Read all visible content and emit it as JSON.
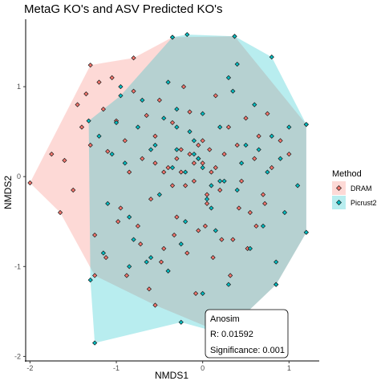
{
  "chart_data": {
    "type": "scatter",
    "title": "MetaG KO's and ASV Predicted KO's",
    "xlabel": "NMDS1",
    "ylabel": "NMDS2",
    "xlim": [
      -2.05,
      1.35
    ],
    "ylim": [
      -2.05,
      1.75
    ],
    "x_ticks": [
      -2,
      -1,
      0,
      1
    ],
    "x_tick_labels": [
      "-2",
      "-1",
      "0",
      "1"
    ],
    "y_ticks": [
      -2,
      -1,
      0,
      1
    ],
    "y_tick_labels": [
      "-2",
      "-1",
      "0",
      "1"
    ],
    "grid": false,
    "legend": {
      "title": "Method",
      "position": "right",
      "entries": [
        {
          "label": "DRAM",
          "color": "#F8766D"
        },
        {
          "label": "Picrust2",
          "color": "#00BFC4"
        }
      ]
    },
    "series": [
      {
        "name": "DRAM",
        "color": "#F8766D",
        "hull": [
          [
            -2.0,
            -0.07
          ],
          [
            -1.3,
            1.24
          ],
          [
            -0.8,
            1.32
          ],
          [
            -0.35,
            1.55
          ],
          [
            0.37,
            1.56
          ],
          [
            1.2,
            0.58
          ],
          [
            1.2,
            -0.62
          ],
          [
            0.85,
            -1.2
          ],
          [
            0.25,
            -1.75
          ],
          [
            -0.55,
            -1.43
          ],
          [
            -1.25,
            -1.1
          ],
          [
            -1.65,
            -0.4
          ]
        ],
        "x": [
          -2.0,
          -1.3,
          -0.8,
          -0.35,
          0.37,
          1.2,
          1.2,
          0.85,
          0.25,
          -0.55,
          -1.25,
          -1.65,
          -1.75,
          -1.6,
          -1.5,
          -1.45,
          -1.4,
          -1.35,
          -1.3,
          -1.2,
          -1.15,
          -1.1,
          -1.05,
          -1.0,
          -0.95,
          -0.9,
          -0.85,
          -0.8,
          -0.75,
          -0.7,
          -0.65,
          -0.6,
          -0.55,
          -0.5,
          -0.45,
          -0.4,
          -0.35,
          -0.3,
          -0.25,
          -0.2,
          -0.15,
          -0.1,
          -0.05,
          0.0,
          0.05,
          0.1,
          0.15,
          0.2,
          0.25,
          0.3,
          0.35,
          0.4,
          0.45,
          0.5,
          0.55,
          0.6,
          0.65,
          0.7,
          0.75,
          0.8,
          0.9,
          1.0,
          -1.25,
          -1.12,
          -0.98,
          -0.88,
          -0.72,
          -0.62,
          -0.48,
          -0.33,
          -0.18,
          -0.08,
          0.03,
          0.12,
          0.22,
          0.32,
          0.42,
          0.52,
          0.62,
          0.72,
          -0.3,
          -0.25,
          -0.15,
          -0.1,
          0.0,
          0.08,
          -0.45,
          -0.55,
          -0.35,
          0.15,
          0.05,
          -0.05,
          -0.22
        ],
        "y": [
          -0.07,
          1.24,
          1.32,
          1.55,
          1.56,
          0.58,
          -0.62,
          -1.2,
          -1.75,
          -1.43,
          -1.1,
          -0.4,
          0.25,
          0.18,
          -0.15,
          0.8,
          0.55,
          0.92,
          0.35,
          1.05,
          0.75,
          0.28,
          1.1,
          0.62,
          -0.35,
          0.4,
          0.05,
          0.95,
          -0.55,
          0.2,
          0.68,
          -0.25,
          0.45,
          0.85,
          -0.8,
          0.1,
          0.6,
          -0.45,
          0.3,
          -0.1,
          0.72,
          0.15,
          -0.6,
          0.4,
          -0.3,
          0.05,
          0.9,
          -0.15,
          0.25,
          0.55,
          -0.7,
          0.35,
          -0.05,
          0.65,
          -0.4,
          0.2,
          0.45,
          -0.2,
          0.7,
          0.1,
          0.4,
          0.25,
          -0.65,
          -0.9,
          -0.5,
          -1.1,
          -0.75,
          -1.25,
          -0.95,
          -0.65,
          -0.85,
          -1.3,
          -0.55,
          -0.9,
          -0.7,
          -1.1,
          -0.35,
          -0.8,
          -0.55,
          -0.3,
          0.2,
          0.05,
          0.25,
          -0.05,
          0.15,
          0.3,
          0.05,
          0.15,
          -0.1,
          0.1,
          -0.2,
          0.35,
          1.0
        ]
      },
      {
        "name": "Picrust2",
        "color": "#00BFC4",
        "hull": [
          [
            -0.18,
            1.58
          ],
          [
            0.37,
            1.56
          ],
          [
            0.8,
            1.33
          ],
          [
            1.2,
            0.58
          ],
          [
            1.2,
            -0.62
          ],
          [
            0.85,
            -1.2
          ],
          [
            0.25,
            -1.75
          ],
          [
            -0.25,
            -1.62
          ],
          [
            -1.25,
            -1.85
          ],
          [
            -1.3,
            -1.15
          ],
          [
            -1.32,
            0.62
          ],
          [
            -0.95,
            0.9
          ],
          [
            -0.35,
            1.55
          ]
        ],
        "x": [
          -0.18,
          0.37,
          0.8,
          1.2,
          1.2,
          0.85,
          0.25,
          -0.25,
          -1.25,
          -1.3,
          -1.32,
          -0.95,
          -0.35,
          -1.2,
          -1.1,
          -1.0,
          -0.9,
          -0.8,
          -0.7,
          -0.6,
          -0.5,
          -0.4,
          -0.3,
          -0.2,
          -0.1,
          0.0,
          0.1,
          0.2,
          0.3,
          0.4,
          0.5,
          0.6,
          0.7,
          0.8,
          0.9,
          1.0,
          1.1,
          -1.15,
          -1.05,
          -0.85,
          -0.65,
          -0.45,
          -0.25,
          -0.05,
          0.15,
          0.35,
          0.55,
          0.75,
          0.95,
          -0.75,
          -0.55,
          -0.35,
          -0.15,
          0.05,
          0.25,
          0.45,
          0.65,
          0.85,
          -0.2,
          -0.1,
          0.0,
          0.1,
          -0.3,
          -0.05,
          0.2,
          -0.4,
          0.3,
          -0.6,
          -0.85,
          -0.95,
          -0.3,
          0.0,
          0.4
        ],
        "y": [
          1.58,
          1.56,
          1.33,
          0.58,
          -0.62,
          -1.2,
          -1.75,
          -1.62,
          -1.85,
          -1.15,
          0.62,
          0.9,
          1.55,
          0.45,
          -0.3,
          0.6,
          0.15,
          -0.7,
          0.85,
          0.3,
          -0.2,
          1.05,
          0.55,
          -0.5,
          0.4,
          0.7,
          -0.35,
          0.55,
          1.1,
          -0.15,
          0.35,
          0.8,
          -0.55,
          0.45,
          0.2,
          0.55,
          -0.1,
          -0.85,
          0.25,
          -0.45,
          -0.95,
          0.65,
          -0.75,
          0.2,
          -0.6,
          0.95,
          -0.8,
          0.05,
          -0.4,
          0.55,
          0.35,
          0.1,
          0.5,
          -0.25,
          -0.05,
          0.15,
          0.3,
          -0.95,
          0.05,
          0.25,
          0.1,
          -0.1,
          0.3,
          0.2,
          -0.05,
          -1.05,
          -1.2,
          -0.9,
          -1.0,
          1.0,
          0.75,
          -1.3,
          1.25
        ]
      }
    ],
    "annotation": {
      "lines": [
        "Anosim",
        "R: 0.01592",
        "Significance: 0.001"
      ]
    }
  }
}
